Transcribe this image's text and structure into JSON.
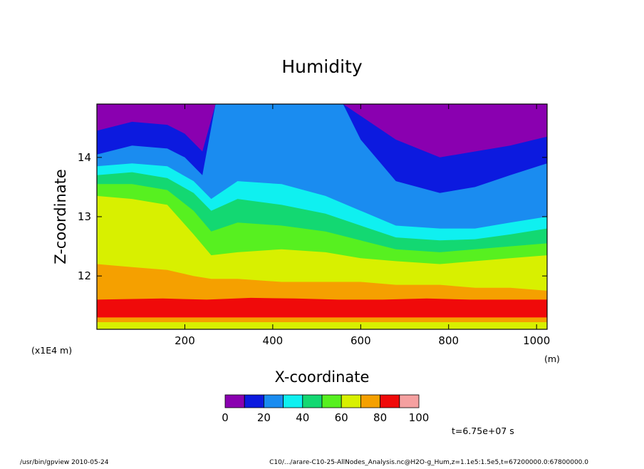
{
  "chart_data": {
    "type": "heatmap",
    "title": "Humidity",
    "xlabel": "X-coordinate",
    "ylabel": "Z-coordinate",
    "x_unit": "(m)",
    "y_scale_note": "(x1E4 m)",
    "xlim": [
      0,
      1024
    ],
    "ylim": [
      11.1,
      14.9
    ],
    "x_ticks": [
      "200",
      "400",
      "600",
      "800",
      "1000"
    ],
    "x_tick_values": [
      200,
      400,
      600,
      800,
      1000
    ],
    "y_ticks": [
      "12",
      "13",
      "14"
    ],
    "y_tick_values": [
      12,
      13,
      14
    ],
    "colorbar": {
      "levels": [
        0,
        10,
        20,
        30,
        40,
        50,
        60,
        70,
        80,
        90,
        100
      ],
      "tick_labels": [
        "0",
        "20",
        "40",
        "60",
        "80",
        "100"
      ],
      "colors": [
        "#8a00b0",
        "#0c1adf",
        "#1a8cf0",
        "#0ff0f0",
        "#13d872",
        "#57f020",
        "#d8f000",
        "#f5a000",
        "#f00a0a",
        "#f5a0a0"
      ]
    },
    "time_label": "t=6.75e+07 s",
    "layers": [
      {
        "level": 1,
        "profile": [
          [
            0,
            14.45
          ],
          [
            80,
            14.6
          ],
          [
            160,
            14.55
          ],
          [
            200,
            14.4
          ],
          [
            240,
            14.1
          ],
          [
            270,
            14.9
          ],
          [
            560,
            14.9
          ],
          [
            600,
            14.7
          ],
          [
            680,
            14.3
          ],
          [
            780,
            14.0
          ],
          [
            860,
            14.1
          ],
          [
            940,
            14.2
          ],
          [
            1024,
            14.35
          ]
        ]
      },
      {
        "level": 2,
        "profile": [
          [
            0,
            14.05
          ],
          [
            80,
            14.2
          ],
          [
            160,
            14.15
          ],
          [
            200,
            14.0
          ],
          [
            240,
            13.7
          ],
          [
            270,
            14.9
          ],
          [
            560,
            14.9
          ],
          [
            600,
            14.3
          ],
          [
            680,
            13.6
          ],
          [
            780,
            13.4
          ],
          [
            860,
            13.5
          ],
          [
            940,
            13.7
          ],
          [
            1024,
            13.9
          ]
        ]
      },
      {
        "level": 3,
        "profile": [
          [
            0,
            13.85
          ],
          [
            80,
            13.9
          ],
          [
            160,
            13.85
          ],
          [
            220,
            13.6
          ],
          [
            260,
            13.3
          ],
          [
            320,
            13.6
          ],
          [
            420,
            13.55
          ],
          [
            520,
            13.35
          ],
          [
            600,
            13.1
          ],
          [
            680,
            12.85
          ],
          [
            780,
            12.8
          ],
          [
            860,
            12.8
          ],
          [
            940,
            12.9
          ],
          [
            1024,
            13.0
          ]
        ]
      },
      {
        "level": 4,
        "profile": [
          [
            0,
            13.7
          ],
          [
            80,
            13.75
          ],
          [
            160,
            13.65
          ],
          [
            220,
            13.4
          ],
          [
            260,
            13.1
          ],
          [
            320,
            13.3
          ],
          [
            420,
            13.2
          ],
          [
            520,
            13.05
          ],
          [
            600,
            12.85
          ],
          [
            680,
            12.65
          ],
          [
            780,
            12.6
          ],
          [
            860,
            12.62
          ],
          [
            940,
            12.7
          ],
          [
            1024,
            12.8
          ]
        ]
      },
      {
        "level": 5,
        "profile": [
          [
            0,
            13.55
          ],
          [
            80,
            13.55
          ],
          [
            160,
            13.45
          ],
          [
            220,
            13.1
          ],
          [
            260,
            12.75
          ],
          [
            320,
            12.9
          ],
          [
            420,
            12.85
          ],
          [
            520,
            12.75
          ],
          [
            600,
            12.6
          ],
          [
            680,
            12.45
          ],
          [
            780,
            12.4
          ],
          [
            860,
            12.45
          ],
          [
            940,
            12.5
          ],
          [
            1024,
            12.55
          ]
        ]
      },
      {
        "level": 6,
        "profile": [
          [
            0,
            13.35
          ],
          [
            80,
            13.3
          ],
          [
            160,
            13.2
          ],
          [
            220,
            12.7
          ],
          [
            260,
            12.35
          ],
          [
            320,
            12.4
          ],
          [
            420,
            12.45
          ],
          [
            520,
            12.4
          ],
          [
            600,
            12.3
          ],
          [
            680,
            12.25
          ],
          [
            780,
            12.2
          ],
          [
            860,
            12.25
          ],
          [
            940,
            12.3
          ],
          [
            1024,
            12.35
          ]
        ]
      },
      {
        "level": 7,
        "profile": [
          [
            0,
            12.2
          ],
          [
            80,
            12.15
          ],
          [
            160,
            12.1
          ],
          [
            220,
            12.0
          ],
          [
            260,
            11.95
          ],
          [
            320,
            11.95
          ],
          [
            420,
            11.9
          ],
          [
            520,
            11.9
          ],
          [
            600,
            11.9
          ],
          [
            680,
            11.85
          ],
          [
            780,
            11.85
          ],
          [
            860,
            11.8
          ],
          [
            940,
            11.8
          ],
          [
            1024,
            11.75
          ]
        ]
      },
      {
        "level": 8,
        "profile": [
          [
            0,
            11.6
          ],
          [
            150,
            11.62
          ],
          [
            250,
            11.6
          ],
          [
            350,
            11.63
          ],
          [
            450,
            11.62
          ],
          [
            550,
            11.6
          ],
          [
            650,
            11.6
          ],
          [
            750,
            11.62
          ],
          [
            850,
            11.6
          ],
          [
            1024,
            11.6
          ]
        ]
      },
      {
        "level": 7,
        "profile": [
          [
            0,
            11.3
          ],
          [
            1024,
            11.3
          ]
        ]
      },
      {
        "level": 6,
        "profile": [
          [
            0,
            11.22
          ],
          [
            1024,
            11.22
          ]
        ]
      }
    ]
  },
  "footer": {
    "left": "/usr/bin/gpview   2010-05-24",
    "right": "C10/.../arare-C10-25-AllNodes_Analysis.nc@H2O-g_Hum,z=1.1e5:1.5e5,t=67200000.0:67800000.0"
  }
}
